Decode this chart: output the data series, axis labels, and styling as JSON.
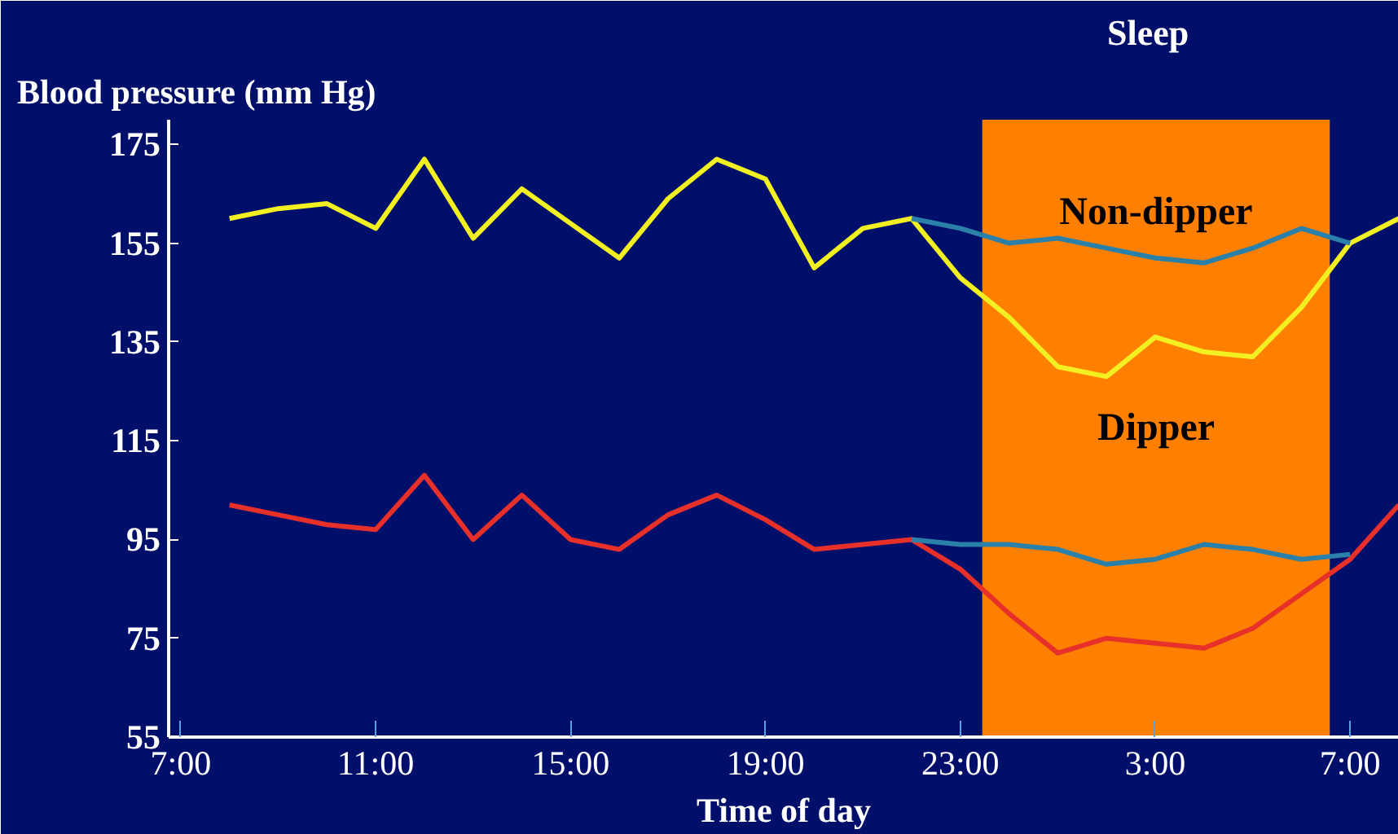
{
  "chart_data": {
    "type": "line",
    "ylabel": "Blood pressure (mm Hg)",
    "xlabel": "Time of day",
    "xlim": [
      "2000-01-01T06:45",
      "2000-01-02T08:00"
    ],
    "ylim": [
      55,
      180
    ],
    "xticks": [
      {
        "value": "2000-01-01T07:00",
        "label": "7:00"
      },
      {
        "value": "2000-01-01T11:00",
        "label": "11:00"
      },
      {
        "value": "2000-01-01T15:00",
        "label": "15:00"
      },
      {
        "value": "2000-01-01T19:00",
        "label": "19:00"
      },
      {
        "value": "2000-01-01T23:00",
        "label": "23:00"
      },
      {
        "value": "2000-01-02T03:00",
        "label": "3:00"
      },
      {
        "value": "2000-01-02T07:00",
        "label": "7:00"
      }
    ],
    "yticks": [
      55,
      75,
      95,
      115,
      135,
      155,
      175
    ],
    "grid": false,
    "line_style": "solid",
    "marker": "none",
    "series": [
      {
        "color": "#f2f020",
        "x": [
          "2000-01-01T08:00",
          "2000-01-01T09:00",
          "2000-01-01T10:00",
          "2000-01-01T11:00",
          "2000-01-01T12:00",
          "2000-01-01T13:00",
          "2000-01-01T14:00",
          "2000-01-01T15:00",
          "2000-01-01T16:00",
          "2000-01-01T17:00",
          "2000-01-01T18:00",
          "2000-01-01T19:00",
          "2000-01-01T20:00",
          "2000-01-01T21:00",
          "2000-01-01T22:00",
          "2000-01-01T23:00",
          "2000-01-02T00:00",
          "2000-01-02T01:00",
          "2000-01-02T02:00",
          "2000-01-02T03:00",
          "2000-01-02T04:00",
          "2000-01-02T05:00",
          "2000-01-02T06:00",
          "2000-01-02T07:00",
          "2000-01-02T08:00"
        ],
        "values": [
          160,
          162,
          163,
          158,
          172,
          156,
          166,
          159,
          152,
          164,
          172,
          168,
          150,
          158,
          160,
          148,
          140,
          130,
          128,
          136,
          133,
          132,
          142,
          155,
          160
        ]
      },
      {
        "color": "#e8302a",
        "x": [
          "2000-01-01T08:00",
          "2000-01-01T09:00",
          "2000-01-01T10:00",
          "2000-01-01T11:00",
          "2000-01-01T12:00",
          "2000-01-01T13:00",
          "2000-01-01T14:00",
          "2000-01-01T15:00",
          "2000-01-01T16:00",
          "2000-01-01T17:00",
          "2000-01-01T18:00",
          "2000-01-01T19:00",
          "2000-01-01T20:00",
          "2000-01-01T21:00",
          "2000-01-01T22:00",
          "2000-01-01T23:00",
          "2000-01-02T00:00",
          "2000-01-02T01:00",
          "2000-01-02T02:00",
          "2000-01-02T03:00",
          "2000-01-02T04:00",
          "2000-01-02T05:00",
          "2000-01-02T06:00",
          "2000-01-02T07:00",
          "2000-01-02T08:00"
        ],
        "values": [
          102,
          100,
          98,
          97,
          108,
          95,
          104,
          95,
          93,
          100,
          104,
          99,
          93,
          94,
          95,
          89,
          80,
          72,
          75,
          74,
          73,
          77,
          84,
          91,
          102
        ]
      },
      {
        "color": "#2a80a8",
        "x": [
          "2000-01-01T22:00",
          "2000-01-01T23:00",
          "2000-01-02T00:00",
          "2000-01-02T01:00",
          "2000-01-02T02:00",
          "2000-01-02T03:00",
          "2000-01-02T04:00",
          "2000-01-02T05:00",
          "2000-01-02T06:00",
          "2000-01-02T07:00"
        ],
        "values": [
          160,
          158,
          155,
          156,
          154,
          152,
          151,
          154,
          158,
          155
        ]
      },
      {
        "color": "#2a80a8",
        "x": [
          "2000-01-01T22:00",
          "2000-01-01T23:00",
          "2000-01-02T00:00",
          "2000-01-02T01:00",
          "2000-01-02T02:00",
          "2000-01-02T03:00",
          "2000-01-02T04:00",
          "2000-01-02T05:00",
          "2000-01-02T06:00",
          "2000-01-02T07:00"
        ],
        "values": [
          95,
          94,
          94,
          93,
          90,
          91,
          94,
          93,
          91,
          92
        ]
      }
    ],
    "bands": [
      {
        "axis": "x",
        "from": "2000-01-01T23:27",
        "to": "2000-01-02T06:35",
        "label": "Sleep",
        "color": "#ff8000"
      }
    ],
    "annotations": [
      "Non-dipper",
      "Dipper"
    ]
  }
}
